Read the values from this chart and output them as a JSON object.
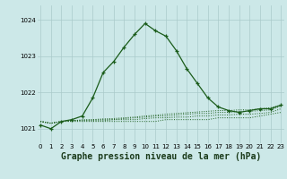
{
  "bg_color": "#cce8e8",
  "grid_color": "#aacaca",
  "line_color": "#1a5c1a",
  "xlabel": "Graphe pression niveau de la mer (hPa)",
  "xlabel_fontsize": 7,
  "ylabel_values": [
    1021,
    1022,
    1023,
    1024
  ],
  "xlim": [
    -0.3,
    23.3
  ],
  "ylim": [
    1020.6,
    1024.4
  ],
  "hours": [
    0,
    1,
    2,
    3,
    4,
    5,
    6,
    7,
    8,
    9,
    10,
    11,
    12,
    13,
    14,
    15,
    16,
    17,
    18,
    19,
    20,
    21,
    22,
    23
  ],
  "series_main": [
    1021.1,
    1021.0,
    1021.2,
    1021.25,
    1021.35,
    1021.85,
    1022.55,
    1022.85,
    1023.25,
    1023.6,
    1023.9,
    1023.7,
    1023.55,
    1023.15,
    1022.65,
    1022.25,
    1021.85,
    1021.6,
    1021.5,
    1021.45,
    1021.5,
    1021.55,
    1021.55,
    1021.65
  ],
  "series_flat1": [
    1021.2,
    1021.15,
    1021.2,
    1021.2,
    1021.2,
    1021.2,
    1021.2,
    1021.2,
    1021.2,
    1021.2,
    1021.2,
    1021.2,
    1021.25,
    1021.25,
    1021.25,
    1021.25,
    1021.25,
    1021.3,
    1021.3,
    1021.3,
    1021.3,
    1021.35,
    1021.4,
    1021.45
  ],
  "series_flat2": [
    1021.2,
    1021.15,
    1021.2,
    1021.22,
    1021.22,
    1021.22,
    1021.22,
    1021.25,
    1021.25,
    1021.25,
    1021.28,
    1021.3,
    1021.3,
    1021.32,
    1021.32,
    1021.35,
    1021.35,
    1021.38,
    1021.38,
    1021.4,
    1021.4,
    1021.42,
    1021.45,
    1021.55
  ],
  "series_flat3": [
    1021.2,
    1021.15,
    1021.2,
    1021.22,
    1021.24,
    1021.24,
    1021.25,
    1021.25,
    1021.28,
    1021.3,
    1021.32,
    1021.35,
    1021.35,
    1021.38,
    1021.4,
    1021.42,
    1021.42,
    1021.45,
    1021.45,
    1021.48,
    1021.48,
    1021.5,
    1021.52,
    1021.62
  ],
  "series_flat4": [
    1021.2,
    1021.15,
    1021.2,
    1021.22,
    1021.24,
    1021.25,
    1021.27,
    1021.28,
    1021.3,
    1021.32,
    1021.35,
    1021.37,
    1021.4,
    1021.42,
    1021.44,
    1021.46,
    1021.48,
    1021.5,
    1021.5,
    1021.52,
    1021.52,
    1021.55,
    1021.58,
    1021.65
  ]
}
